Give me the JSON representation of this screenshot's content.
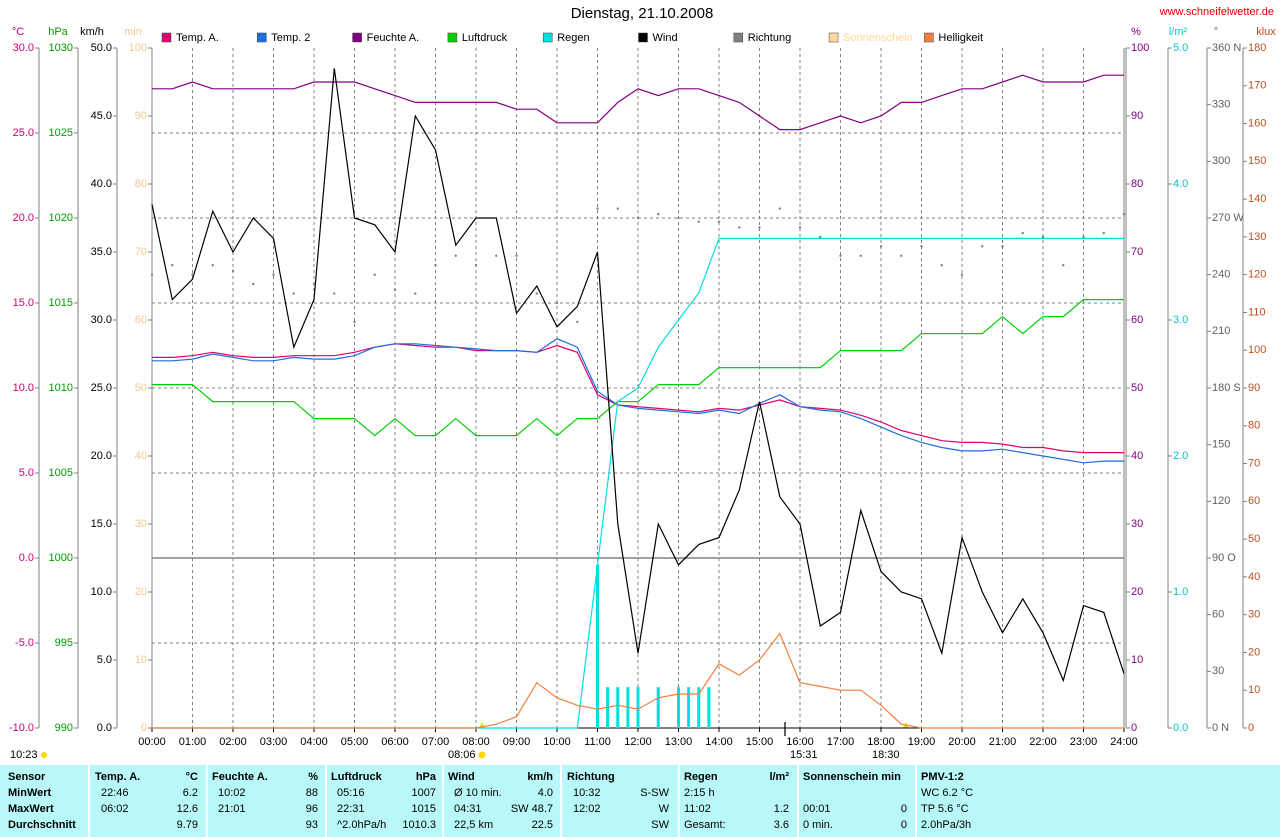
{
  "chart_data": {
    "type": "line",
    "title": "Dienstag, 21.10.2008",
    "source": "www.schneifelwetter.de",
    "grid": true,
    "axes": {
      "temp": {
        "unit": "°C",
        "color": "#d0007a",
        "lim": [
          -10,
          30
        ],
        "ticks": [
          {
            "value": -10,
            "label": "-10.0"
          },
          {
            "value": -5,
            "label": "-5.0"
          },
          {
            "value": 0,
            "label": "0.0"
          },
          {
            "value": 5,
            "label": "5.0"
          },
          {
            "value": 10,
            "label": "10.0"
          },
          {
            "value": 15,
            "label": "15.0"
          },
          {
            "value": 20,
            "label": "20.0"
          },
          {
            "value": 25,
            "label": "25.0"
          },
          {
            "value": 30,
            "label": "30.0"
          }
        ]
      },
      "hpa": {
        "unit": "hPa",
        "color": "#00a000",
        "lim": [
          990,
          1030
        ],
        "ticks": [
          990,
          995,
          1000,
          1005,
          1010,
          1015,
          1020,
          1025,
          1030
        ]
      },
      "kmh": {
        "unit": "km/h",
        "color": "#000000",
        "lim": [
          0,
          50
        ],
        "ticks": [
          {
            "value": 0,
            "label": "0.0"
          },
          {
            "value": 5,
            "label": "5.0"
          },
          {
            "value": 10,
            "label": "10.0"
          },
          {
            "value": 15,
            "label": "15.0"
          },
          {
            "value": 20,
            "label": "20.0"
          },
          {
            "value": 25,
            "label": "25.0"
          },
          {
            "value": 30,
            "label": "30.0"
          },
          {
            "value": 35,
            "label": "35.0"
          },
          {
            "value": 40,
            "label": "40.0"
          },
          {
            "value": 45,
            "label": "45.0"
          },
          {
            "value": 50,
            "label": "50.0"
          }
        ]
      },
      "min": {
        "unit": "min",
        "color": "#f0c890",
        "lim": [
          0,
          100
        ],
        "ticks": [
          0,
          10,
          20,
          30,
          40,
          50,
          60,
          70,
          80,
          90,
          100
        ]
      },
      "pct": {
        "unit": "%",
        "color": "#800080",
        "lim": [
          0,
          100
        ],
        "ticks": [
          0,
          10,
          20,
          30,
          40,
          50,
          60,
          70,
          80,
          90,
          100
        ]
      },
      "rain": {
        "unit": "l/m²",
        "color": "#00c8c8",
        "lim": [
          0,
          5
        ],
        "ticks": [
          {
            "value": 0,
            "label": "0.0"
          },
          {
            "value": 1,
            "label": "1.0"
          },
          {
            "value": 2,
            "label": "2.0"
          },
          {
            "value": 3,
            "label": "3.0"
          },
          {
            "value": 4,
            "label": "4.0"
          },
          {
            "value": 5,
            "label": "5.0"
          }
        ]
      },
      "deg": {
        "unit": "°",
        "color": "#606060",
        "lim": [
          0,
          360
        ],
        "ticks": [
          {
            "value": 0,
            "label": "0 N"
          },
          30,
          60,
          {
            "value": 90,
            "label": "90 O"
          },
          120,
          150,
          {
            "value": 180,
            "label": "180 S"
          },
          210,
          240,
          {
            "value": 270,
            "label": "270 W"
          },
          300,
          330,
          {
            "value": 360,
            "label": "360 N"
          }
        ]
      },
      "klux": {
        "unit": "klux",
        "color": "#c05020",
        "lim": [
          0,
          180
        ],
        "ticks": [
          0,
          10,
          20,
          30,
          40,
          50,
          60,
          70,
          80,
          90,
          100,
          110,
          120,
          130,
          140,
          150,
          160,
          170,
          180
        ]
      }
    },
    "xlim": [
      0,
      24
    ],
    "xticks": [
      {
        "value": 0,
        "label": "00:00"
      },
      {
        "value": 1,
        "label": "01:00"
      },
      {
        "value": 2,
        "label": "02:00"
      },
      {
        "value": 3,
        "label": "03:00"
      },
      {
        "value": 4,
        "label": "04:00"
      },
      {
        "value": 5,
        "label": "05:00"
      },
      {
        "value": 6,
        "label": "06:00"
      },
      {
        "value": 7,
        "label": "07:00"
      },
      {
        "value": 8,
        "label": "08:00"
      },
      {
        "value": 9,
        "label": "09:00"
      },
      {
        "value": 10,
        "label": "10:00"
      },
      {
        "value": 11,
        "label": "11:00"
      },
      {
        "value": 12,
        "label": "12:00"
      },
      {
        "value": 13,
        "label": "13:00"
      },
      {
        "value": 14,
        "label": "14:00"
      },
      {
        "value": 15,
        "label": "15:00"
      },
      {
        "value": 16,
        "label": "16:00"
      },
      {
        "value": 17,
        "label": "17:00"
      },
      {
        "value": 18,
        "label": "18:00"
      },
      {
        "value": 19,
        "label": "19:00"
      },
      {
        "value": 20,
        "label": "20:00"
      },
      {
        "value": 21,
        "label": "21:00"
      },
      {
        "value": 22,
        "label": "22:00"
      },
      {
        "value": 23,
        "label": "23:00"
      },
      {
        "value": 24,
        "label": "24:00"
      }
    ],
    "x": [
      0,
      0.5,
      1,
      1.5,
      2,
      2.5,
      3,
      3.5,
      4,
      4.5,
      5,
      5.5,
      6,
      6.5,
      7,
      7.5,
      8,
      8.5,
      9,
      9.5,
      10,
      10.5,
      11,
      11.5,
      12,
      12.5,
      13,
      13.5,
      14,
      14.5,
      15,
      15.5,
      16,
      16.5,
      17,
      17.5,
      18,
      18.5,
      19,
      19.5,
      20,
      20.5,
      21,
      21.5,
      22,
      22.5,
      23,
      23.5,
      24
    ],
    "series": [
      {
        "name": "Temp. A.",
        "color": "#e0006f",
        "axis": "temp",
        "values": [
          11.8,
          11.8,
          11.9,
          12.1,
          11.9,
          11.8,
          11.8,
          11.9,
          11.9,
          11.9,
          12.1,
          12.4,
          12.6,
          12.5,
          12.4,
          12.4,
          12.2,
          12.2,
          12.2,
          12.1,
          12.5,
          12.1,
          9.6,
          9.0,
          8.9,
          8.8,
          8.7,
          8.6,
          8.8,
          8.7,
          9.0,
          9.3,
          8.9,
          8.8,
          8.7,
          8.4,
          8.0,
          7.5,
          7.2,
          6.9,
          6.8,
          6.8,
          6.7,
          6.5,
          6.5,
          6.3,
          6.2,
          6.2,
          6.2
        ]
      },
      {
        "name": "Temp. 2",
        "color": "#1f6fdc",
        "axis": "temp",
        "values": [
          11.6,
          11.6,
          11.7,
          12.0,
          11.8,
          11.6,
          11.6,
          11.8,
          11.7,
          11.7,
          11.9,
          12.4,
          12.6,
          12.6,
          12.5,
          12.4,
          12.3,
          12.2,
          12.2,
          12.1,
          12.9,
          12.4,
          9.8,
          9.0,
          8.8,
          8.7,
          8.6,
          8.5,
          8.7,
          8.5,
          9.1,
          9.6,
          8.9,
          8.7,
          8.6,
          8.2,
          7.7,
          7.2,
          6.8,
          6.5,
          6.3,
          6.3,
          6.4,
          6.2,
          6.0,
          5.8,
          5.6,
          5.7,
          5.7
        ]
      },
      {
        "name": "Feuchte A.",
        "color": "#800080",
        "axis": "pct",
        "values": [
          94,
          94,
          95,
          94,
          94,
          94,
          94,
          94,
          95,
          95,
          95,
          94,
          93,
          92,
          92,
          92,
          92,
          92,
          91,
          91,
          89,
          89,
          89,
          92,
          94,
          93,
          94,
          94,
          93,
          92,
          90,
          88,
          88,
          89,
          90,
          89,
          90,
          92,
          92,
          93,
          94,
          94,
          95,
          96,
          95,
          95,
          95,
          96,
          96
        ]
      },
      {
        "name": "Luftdruck",
        "color": "#00d000",
        "axis": "hpa",
        "values": [
          1010.2,
          1010.2,
          1010.2,
          1009.2,
          1009.2,
          1009.2,
          1009.2,
          1009.2,
          1008.2,
          1008.2,
          1008.2,
          1007.2,
          1008.2,
          1007.2,
          1007.2,
          1008.2,
          1007.2,
          1007.2,
          1007.2,
          1008.2,
          1007.2,
          1008.2,
          1008.2,
          1009.2,
          1009.2,
          1010.2,
          1010.2,
          1010.2,
          1011.2,
          1011.2,
          1011.2,
          1011.2,
          1011.2,
          1011.2,
          1012.2,
          1012.2,
          1012.2,
          1012.2,
          1013.2,
          1013.2,
          1013.2,
          1013.2,
          1014.2,
          1013.2,
          1014.2,
          1014.2,
          1015.2,
          1015.2,
          1015.2
        ]
      },
      {
        "name": "Regen",
        "color": "#00e0e0",
        "axis": "rain",
        "values": [
          0,
          0,
          0,
          0,
          0,
          0,
          0,
          0,
          0,
          0,
          0,
          0,
          0,
          0,
          0,
          0,
          0,
          0,
          0,
          0,
          0,
          0,
          1.2,
          2.4,
          2.5,
          2.8,
          3.0,
          3.2,
          3.6,
          3.6,
          3.6,
          3.6,
          3.6,
          3.6,
          3.6,
          3.6,
          3.6,
          3.6,
          3.6,
          3.6,
          3.6,
          3.6,
          3.6,
          3.6,
          3.6,
          3.6,
          3.6,
          3.6,
          3.6
        ]
      },
      {
        "name": "Wind",
        "color": "#000000",
        "axis": "kmh",
        "values": [
          38.5,
          31.5,
          33.0,
          38.0,
          35.0,
          37.5,
          36.0,
          28.0,
          31.5,
          48.5,
          37.5,
          37.0,
          35.0,
          45.0,
          42.5,
          35.5,
          37.5,
          37.5,
          30.5,
          32.5,
          29.5,
          31.0,
          35.0,
          15.0,
          5.5,
          15.0,
          12.0,
          13.5,
          14.0,
          17.5,
          24.0,
          17.0,
          15.0,
          7.5,
          8.5,
          16.0,
          11.5,
          10.0,
          9.5,
          5.5,
          14.0,
          10.0,
          7.0,
          9.5,
          7.0,
          3.5,
          9.0,
          8.5,
          4.0
        ]
      },
      {
        "name": "Richtung",
        "color": "#808080",
        "axis": "deg",
        "style": "dots",
        "values": [
          240,
          245,
          240,
          245,
          242,
          235,
          240,
          230,
          235,
          230,
          215,
          240,
          232,
          230,
          245,
          250,
          245,
          250,
          250,
          230,
          225,
          215,
          275,
          275,
          270,
          272,
          270,
          268,
          268,
          265,
          265,
          275,
          265,
          260,
          250,
          250,
          255,
          250,
          255,
          245,
          240,
          255,
          255,
          262,
          260,
          245,
          260,
          262,
          272
        ]
      },
      {
        "name": "Sonnenschein",
        "color": "#ffd89b",
        "axis": "min"
      },
      {
        "name": "Helligkeit",
        "color": "#f08040",
        "axis": "klux",
        "values": [
          0,
          0,
          0,
          0,
          0,
          0,
          0,
          0,
          0,
          0,
          0,
          0,
          0,
          0,
          0,
          0,
          0,
          1,
          3,
          12,
          8,
          6,
          5,
          6,
          5,
          8,
          9,
          9,
          17,
          14,
          18,
          25,
          12,
          11,
          10,
          10,
          6,
          1,
          0,
          0,
          0,
          0,
          0,
          0,
          0,
          0,
          0,
          0,
          0
        ]
      }
    ],
    "rain_bars": {
      "axis": "rain",
      "color": "#00e0e0",
      "x": [
        11,
        11.25,
        11.5,
        11.75,
        12,
        12.5,
        13,
        13.25,
        13.5,
        13.75
      ],
      "values": [
        1.2,
        0.3,
        0.3,
        0.3,
        0.3,
        0.3,
        0.3,
        0.3,
        0.3,
        0.3
      ]
    },
    "annotations": [
      "10:23",
      "08:06",
      "15:31",
      "18:30"
    ]
  },
  "table": {
    "groups": [
      {
        "header": "Sensor",
        "rows": [
          "MinWert",
          "MaxWert",
          "Durchschnitt"
        ]
      },
      {
        "header": "Temp. A.",
        "unit": "°C",
        "rows": [
          {
            "time": "22:46",
            "value": "6.2"
          },
          {
            "time": "06:02",
            "value": "12.6"
          },
          {
            "value": "9.79"
          }
        ]
      },
      {
        "header": "Feuchte A.",
        "unit": "%",
        "rows": [
          {
            "time": "10:02",
            "value": "88"
          },
          {
            "time": "21:01",
            "value": "96"
          },
          {
            "value": "93"
          }
        ]
      },
      {
        "header": "Luftdruck",
        "unit": "hPa",
        "rows": [
          {
            "time": "05:16",
            "value": "1007"
          },
          {
            "time": "22:31",
            "value": "1015"
          },
          {
            "time": "^2.0hPa/h",
            "value": "1010.3"
          }
        ]
      },
      {
        "header": "Wind",
        "unit": "km/h",
        "rows": [
          {
            "time": "Ø 10 min.",
            "value": "4.0"
          },
          {
            "time": "04:31",
            "value": "SW 48.7"
          },
          {
            "time": "22,5 km",
            "value": "22.5"
          }
        ]
      },
      {
        "header": "Richtung",
        "rows": [
          {
            "time": "10:32",
            "value": "S-SW"
          },
          {
            "time": "12:02",
            "value": "W"
          },
          {
            "value": "SW"
          }
        ]
      },
      {
        "header": "Regen",
        "unit": "l/m²",
        "rows": [
          {
            "time": "2:15 h"
          },
          {
            "time": "11:02",
            "value": "1.2"
          },
          {
            "time": "Gesamt:",
            "value": "3.6"
          }
        ]
      },
      {
        "header": "Sonnenschein min",
        "rows": [
          null,
          {
            "time": "00:01",
            "value": "0"
          },
          {
            "time": "0 min.",
            "value": "0"
          }
        ]
      },
      {
        "header": "PMV-1:2",
        "rows": [
          {
            "time": "WC 6.2 °C"
          },
          {
            "time": "TP 5.6 °C"
          },
          {
            "time": "2.0hPa/3h"
          }
        ]
      }
    ]
  }
}
